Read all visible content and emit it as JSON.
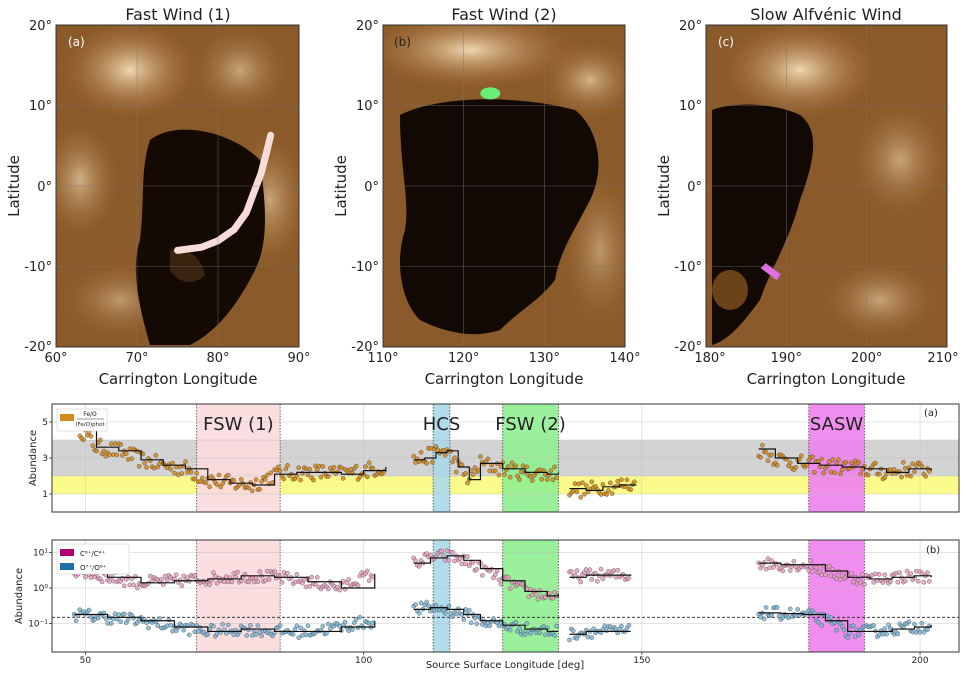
{
  "images": [
    {
      "title": "Fast Wind (1)",
      "panel_label": "(a)",
      "xticks": [
        "60°",
        "70°",
        "80°",
        "90°"
      ],
      "yticks": [
        "20°",
        "10°",
        "0°",
        "-10°",
        "-20°"
      ],
      "xlabel": "Carrington Longitude",
      "ylabel": "Latitude",
      "track_color": "#f8dcd8",
      "track_lon": [
        75,
        78,
        80,
        82,
        83.5,
        84.5,
        85.3,
        86,
        86.5
      ],
      "track_lat": [
        -8,
        -7.6,
        -6.8,
        -5.4,
        -3.3,
        -0.6,
        1.5,
        4.2,
        6.3
      ],
      "start_lon": 60
    },
    {
      "title": "Fast Wind (2)",
      "panel_label": "(b)",
      "xticks": [
        "110°",
        "120°",
        "130°",
        "140°"
      ],
      "yticks": [
        "20°",
        "10°",
        "0°",
        "-10°",
        "-20°"
      ],
      "xlabel": "Carrington Longitude",
      "ylabel": "Latitude",
      "blob_color": "#66ee77",
      "blob_lon": 123.3,
      "blob_lat": 11.5,
      "start_lon": 110
    },
    {
      "title": "Slow Alfvénic Wind",
      "panel_label": "(c)",
      "xticks": [
        "180°",
        "190°",
        "200°",
        "210°"
      ],
      "yticks": [
        "20°",
        "10°",
        "0°",
        "-10°",
        "-20°"
      ],
      "xlabel": "Carrington Longitude",
      "ylabel": "Latitude",
      "blob_color": "#e36ee3",
      "blob_lon": 188.3,
      "blob_lat": -11.2,
      "start_lon": 180
    }
  ],
  "legend_a": {
    "label": "Fe/O",
    "label_sub": "(Fe/O)phot",
    "color": "#d38a1d"
  },
  "legend_b": [
    {
      "label": "C⁶⁺/C⁴⁺",
      "color": "#b2006e"
    },
    {
      "label": "O⁷⁺/O⁶⁺",
      "color": "#1f6fa8"
    }
  ],
  "regions": [
    {
      "label": "FSW (1)",
      "x0": 70,
      "x1": 85,
      "color": "#fadadd"
    },
    {
      "label": "HCS",
      "x0": 112.5,
      "x1": 115.5,
      "color": "#a8d8ea"
    },
    {
      "label": "FSW (2)",
      "x0": 125,
      "x1": 135,
      "color": "#90ee90"
    },
    {
      "label": "SASW",
      "x0": 180,
      "x1": 190,
      "color": "#ee82ee"
    }
  ],
  "chart_data": [
    {
      "type": "scatter",
      "panel": "(a)",
      "ylabel": "Abundance",
      "xlim": [
        44,
        207
      ],
      "ylim": [
        0,
        6
      ],
      "yticks": [
        "1",
        "3",
        "5"
      ],
      "band_gray": [
        2,
        4
      ],
      "band_yellow": [
        1,
        2
      ],
      "segments": [
        {
          "x": [
            48,
            52,
            56,
            60,
            64,
            68,
            72,
            76,
            80,
            84,
            88,
            92,
            96,
            100,
            104
          ],
          "y": [
            5.0,
            3.6,
            3.4,
            2.9,
            2.6,
            2.4,
            1.8,
            1.6,
            1.5,
            2.1,
            2.2,
            2.2,
            2.1,
            2.3,
            2.5
          ]
        },
        {
          "x": [
            109,
            111,
            113,
            115,
            117,
            119,
            121,
            125,
            129,
            133,
            135
          ],
          "y": [
            2.9,
            3.0,
            3.3,
            3.4,
            2.5,
            1.8,
            2.7,
            2.4,
            2.2,
            2.1,
            2.2
          ]
        },
        {
          "x": [
            137,
            140,
            143,
            146,
            149
          ],
          "y": [
            1.3,
            1.2,
            1.4,
            1.5,
            1.5
          ]
        },
        {
          "x": [
            171,
            174,
            178,
            182,
            186,
            190,
            194,
            198,
            202
          ],
          "y": [
            3.5,
            3.0,
            2.7,
            2.6,
            2.5,
            2.4,
            2.2,
            2.4,
            2.3
          ]
        }
      ]
    },
    {
      "type": "scatter",
      "panel": "(b)",
      "ylabel": "Abundance",
      "xlabel": "Source Surface Longitude [deg]",
      "xlim": [
        44,
        207
      ],
      "ylim_log10": [
        -1.8,
        1.35
      ],
      "yticks": [
        "10¹",
        "10⁰",
        "10⁻¹"
      ],
      "xticks": [
        50,
        100,
        150,
        200
      ],
      "reference_line": 0.15,
      "series": [
        {
          "name": "C⁶⁺/C⁴⁺",
          "segments": [
            {
              "x": [
                48,
                54,
                60,
                66,
                72,
                78,
                84,
                90,
                96,
                102
              ],
              "y": [
                3.0,
                2.0,
                1.4,
                1.6,
                1.8,
                2.2,
                2.0,
                1.5,
                1.0,
                2.5
              ]
            },
            {
              "x": [
                109,
                112,
                115,
                118,
                121,
                125,
                129,
                133,
                135
              ],
              "y": [
                5.0,
                7.0,
                8.0,
                6.0,
                3.5,
                1.6,
                0.8,
                0.6,
                0.7
              ]
            },
            {
              "x": [
                137,
                140,
                144,
                148
              ],
              "y": [
                2.0,
                2.3,
                2.3,
                2.2
              ]
            },
            {
              "x": [
                171,
                175,
                179,
                183,
                187,
                191,
                195,
                199,
                202
              ],
              "y": [
                5.0,
                4.5,
                4.5,
                3.0,
                2.0,
                1.8,
                2.0,
                2.2,
                2.0
              ]
            }
          ]
        },
        {
          "name": "O⁷⁺/O⁶⁺",
          "segments": [
            {
              "x": [
                48,
                54,
                60,
                66,
                72,
                78,
                84,
                90,
                96,
                102
              ],
              "y": [
                0.18,
                0.15,
                0.12,
                0.08,
                0.06,
                0.07,
                0.06,
                0.06,
                0.08,
                0.12
              ]
            },
            {
              "x": [
                109,
                112,
                115,
                118,
                121,
                125,
                129,
                133,
                135
              ],
              "y": [
                0.25,
                0.28,
                0.25,
                0.18,
                0.12,
                0.09,
                0.07,
                0.06,
                0.06
              ]
            },
            {
              "x": [
                137,
                140,
                144,
                148
              ],
              "y": [
                0.05,
                0.06,
                0.06,
                0.06
              ]
            },
            {
              "x": [
                171,
                175,
                179,
                183,
                187,
                191,
                195,
                199,
                202
              ],
              "y": [
                0.2,
                0.19,
                0.18,
                0.12,
                0.06,
                0.06,
                0.07,
                0.08,
                0.09
              ]
            }
          ]
        }
      ]
    }
  ]
}
